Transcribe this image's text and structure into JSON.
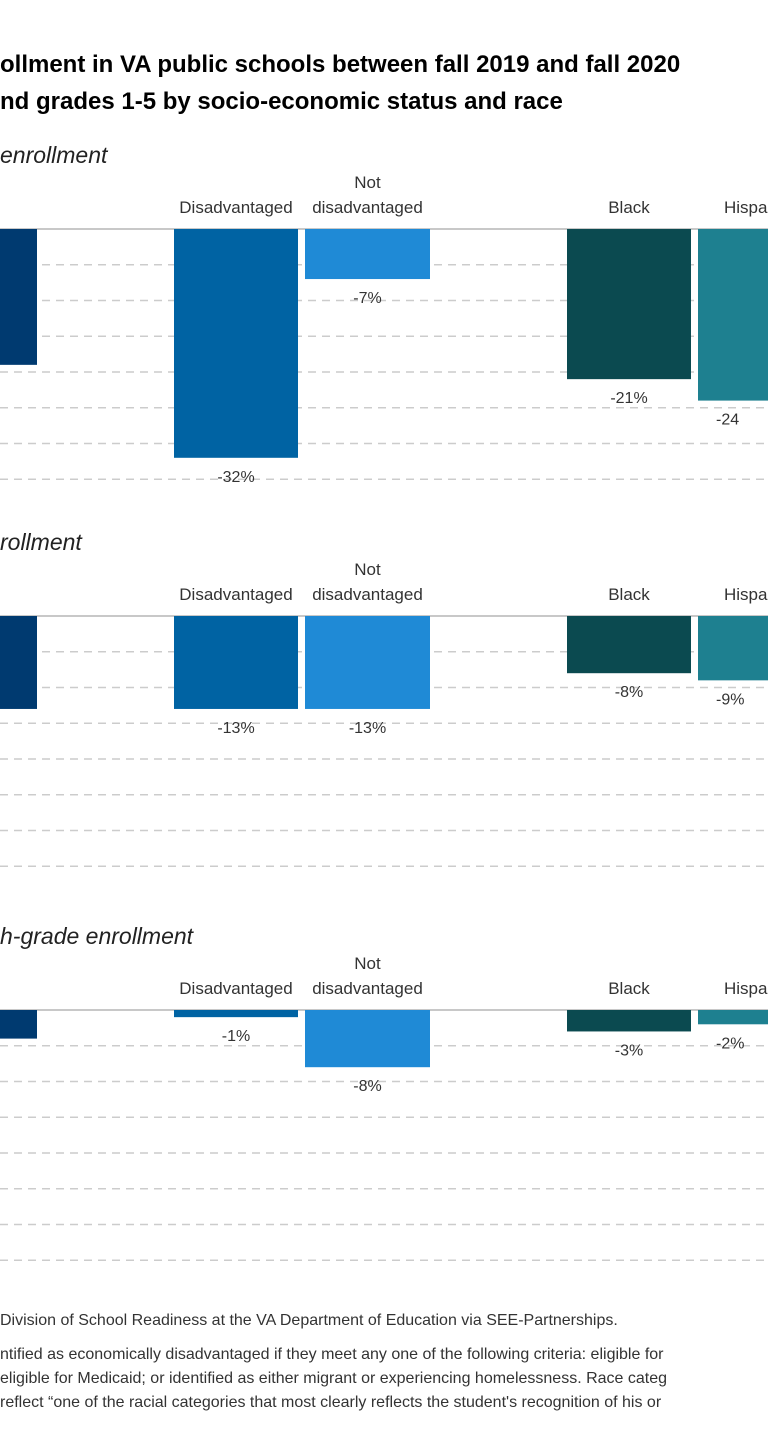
{
  "title_lines": [
    "ollment in VA public schools between fall 2019 and fall 2020",
    "nd grades 1-5 by socio-economic status and race"
  ],
  "colors": {
    "first": "#003a70",
    "disadvantaged": "#0063a3",
    "not_disadvantaged": "#1f8ad6",
    "black": "#0b4a50",
    "hispanic": "#1e8090",
    "grid": "#cccccc"
  },
  "chart_data": [
    {
      "type": "bar",
      "subtitle": "enrollment",
      "categories": [
        "",
        "Disadvantaged",
        "Not disadvantaged",
        "Black",
        "Hispa"
      ],
      "values": [
        -19,
        -32,
        -7,
        -21,
        -24
      ],
      "labels": [
        "",
        "-32%",
        "-7%",
        "-21%",
        "-24"
      ],
      "ylim": [
        -35,
        0
      ],
      "grid": true
    },
    {
      "type": "bar",
      "subtitle": "rollment",
      "categories": [
        "",
        "Disadvantaged",
        "Not disadvantaged",
        "Black",
        "Hispa"
      ],
      "values": [
        -13,
        -13,
        -13,
        -8,
        -9
      ],
      "labels": [
        "",
        "-13%",
        "-13%",
        "-8%",
        "-9%"
      ],
      "ylim": [
        -35,
        0
      ],
      "grid": true
    },
    {
      "type": "bar",
      "subtitle": "h-grade enrollment",
      "categories": [
        "",
        "Disadvantaged",
        "Not disadvantaged",
        "Black",
        "Hispa"
      ],
      "values": [
        -4,
        -1,
        -8,
        -3,
        -2
      ],
      "labels": [
        "",
        "-1%",
        "-8%",
        "-3%",
        "-2%"
      ],
      "ylim": [
        -35,
        0
      ],
      "grid": true
    }
  ],
  "footer_lines": [
    "Division of School Readiness at the VA Department of Education via SEE-Partnerships.",
    "ntified as economically disadvantaged if they meet any one of the following criteria: eligible for",
    " eligible for Medicaid; or identified as either migrant or experiencing homelessness. Race categ",
    " reflect “one of the racial categories that most clearly reflects the student's recognition of his or"
  ]
}
